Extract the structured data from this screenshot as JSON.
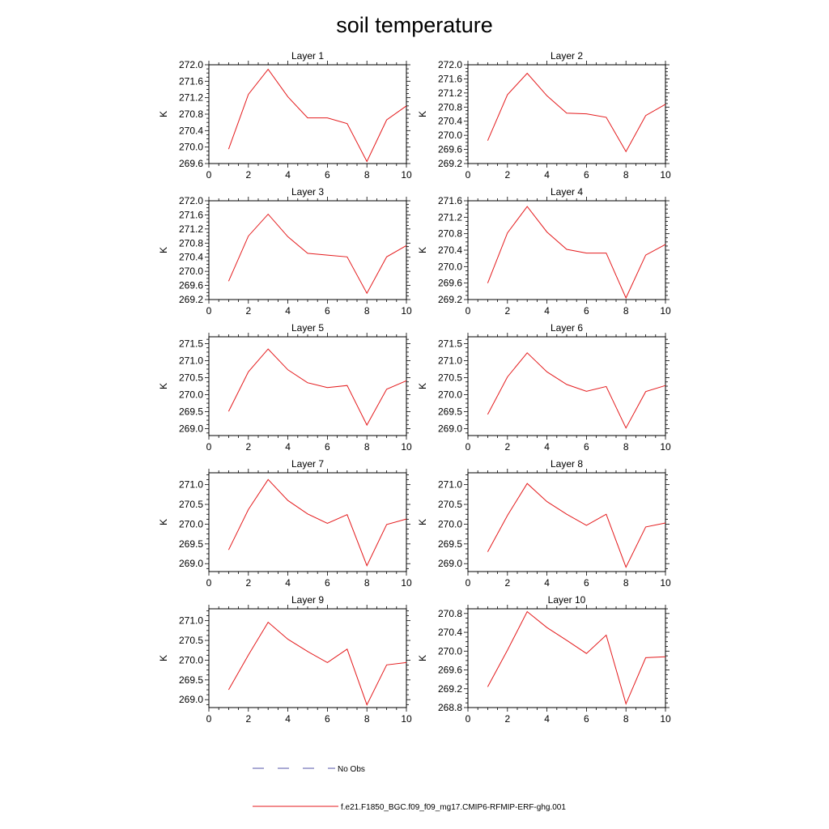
{
  "title": "soil temperature",
  "series_color": "#e41a1c",
  "obs_color": "#5555aa",
  "legend": {
    "obs_label": "No Obs",
    "model_label": "f.e21.F1850_BGC.f09_f09_mg17.CMIP6-RFMIP-ERF-ghg.001"
  },
  "chart_data": [
    {
      "type": "line",
      "title": "Layer 1",
      "ylabel": "K",
      "xlim": [
        0,
        10
      ],
      "xticks": [
        0,
        2,
        4,
        6,
        8,
        10
      ],
      "ylim": [
        269.6,
        272.0
      ],
      "yticks": [
        269.6,
        270.0,
        270.4,
        270.8,
        271.2,
        271.6,
        272.0
      ],
      "x": [
        1,
        2,
        3,
        4,
        5,
        6,
        7,
        8,
        9,
        10
      ],
      "values": [
        269.95,
        271.28,
        271.89,
        271.22,
        270.71,
        270.71,
        270.57,
        269.65,
        270.66,
        271.0
      ]
    },
    {
      "type": "line",
      "title": "Layer 2",
      "ylabel": "K",
      "xlim": [
        0,
        10
      ],
      "xticks": [
        0,
        2,
        4,
        6,
        8,
        10
      ],
      "ylim": [
        269.2,
        272.0
      ],
      "yticks": [
        269.2,
        269.6,
        270.0,
        270.4,
        270.8,
        271.2,
        271.6,
        272.0
      ],
      "x": [
        1,
        2,
        3,
        4,
        5,
        6,
        7,
        8,
        9,
        10
      ],
      "values": [
        269.85,
        271.15,
        271.76,
        271.12,
        270.63,
        270.61,
        270.51,
        269.54,
        270.56,
        270.88
      ]
    },
    {
      "type": "line",
      "title": "Layer 3",
      "ylabel": "K",
      "xlim": [
        0,
        10
      ],
      "xticks": [
        0,
        2,
        4,
        6,
        8,
        10
      ],
      "ylim": [
        269.2,
        272.0
      ],
      "yticks": [
        269.2,
        269.6,
        270.0,
        270.4,
        270.8,
        271.2,
        271.6,
        272.0
      ],
      "x": [
        1,
        2,
        3,
        4,
        5,
        6,
        7,
        8,
        9,
        10
      ],
      "values": [
        269.72,
        271.0,
        271.62,
        270.98,
        270.51,
        270.46,
        270.41,
        269.38,
        270.41,
        270.73
      ]
    },
    {
      "type": "line",
      "title": "Layer 4",
      "ylabel": "K",
      "xlim": [
        0,
        10
      ],
      "xticks": [
        0,
        2,
        4,
        6,
        8,
        10
      ],
      "ylim": [
        269.2,
        271.6
      ],
      "yticks": [
        269.2,
        269.6,
        270.0,
        270.4,
        270.8,
        271.2,
        271.6
      ],
      "x": [
        1,
        2,
        3,
        4,
        5,
        6,
        7,
        8,
        9,
        10
      ],
      "values": [
        269.6,
        270.82,
        271.46,
        270.84,
        270.42,
        270.33,
        270.33,
        269.24,
        270.28,
        270.54
      ]
    },
    {
      "type": "line",
      "title": "Layer 5",
      "ylabel": "K",
      "xlim": [
        0,
        10
      ],
      "xticks": [
        0,
        2,
        4,
        6,
        8,
        10
      ],
      "ylim": [
        268.8,
        271.7
      ],
      "yticks": [
        269.0,
        269.5,
        270.0,
        270.5,
        271.0,
        271.5
      ],
      "x": [
        1,
        2,
        3,
        4,
        5,
        6,
        7,
        8,
        9,
        10
      ],
      "values": [
        269.51,
        270.67,
        271.34,
        270.73,
        270.35,
        270.21,
        270.27,
        269.11,
        270.16,
        270.41
      ]
    },
    {
      "type": "line",
      "title": "Layer 6",
      "ylabel": "K",
      "xlim": [
        0,
        10
      ],
      "xticks": [
        0,
        2,
        4,
        6,
        8,
        10
      ],
      "ylim": [
        268.8,
        271.7
      ],
      "yticks": [
        269.0,
        269.5,
        270.0,
        270.5,
        271.0,
        271.5
      ],
      "x": [
        1,
        2,
        3,
        4,
        5,
        6,
        7,
        8,
        9,
        10
      ],
      "values": [
        269.42,
        270.52,
        271.23,
        270.67,
        270.3,
        270.1,
        270.24,
        269.02,
        270.09,
        270.27
      ]
    },
    {
      "type": "line",
      "title": "Layer 7",
      "ylabel": "K",
      "xlim": [
        0,
        10
      ],
      "xticks": [
        0,
        2,
        4,
        6,
        8,
        10
      ],
      "ylim": [
        268.8,
        271.3
      ],
      "yticks": [
        269.0,
        269.5,
        270.0,
        270.5,
        271.0
      ],
      "x": [
        1,
        2,
        3,
        4,
        5,
        6,
        7,
        8,
        9,
        10
      ],
      "values": [
        269.35,
        270.37,
        271.13,
        270.6,
        270.26,
        270.02,
        270.24,
        268.95,
        269.99,
        270.13
      ]
    },
    {
      "type": "line",
      "title": "Layer 8",
      "ylabel": "K",
      "xlim": [
        0,
        10
      ],
      "xticks": [
        0,
        2,
        4,
        6,
        8,
        10
      ],
      "ylim": [
        268.8,
        271.3
      ],
      "yticks": [
        269.0,
        269.5,
        270.0,
        270.5,
        271.0
      ],
      "x": [
        1,
        2,
        3,
        4,
        5,
        6,
        7,
        8,
        9,
        10
      ],
      "values": [
        269.3,
        270.22,
        271.03,
        270.57,
        270.25,
        269.97,
        270.25,
        268.91,
        269.93,
        270.03
      ]
    },
    {
      "type": "line",
      "title": "Layer 9",
      "ylabel": "K",
      "xlim": [
        0,
        10
      ],
      "xticks": [
        0,
        2,
        4,
        6,
        8,
        10
      ],
      "ylim": [
        268.8,
        271.3
      ],
      "yticks": [
        269.0,
        269.5,
        270.0,
        270.5,
        271.0
      ],
      "x": [
        1,
        2,
        3,
        4,
        5,
        6,
        7,
        8,
        9,
        10
      ],
      "values": [
        269.25,
        270.13,
        270.96,
        270.53,
        270.22,
        269.94,
        270.28,
        268.87,
        269.88,
        269.94
      ]
    },
    {
      "type": "line",
      "title": "Layer 10",
      "ylabel": "K",
      "xlim": [
        0,
        10
      ],
      "xticks": [
        0,
        2,
        4,
        6,
        8,
        10
      ],
      "ylim": [
        268.8,
        270.9
      ],
      "yticks": [
        268.8,
        269.2,
        269.6,
        270.0,
        270.4,
        270.8
      ],
      "x": [
        1,
        2,
        3,
        4,
        5,
        6,
        7,
        8,
        9,
        10
      ],
      "values": [
        269.24,
        270.02,
        270.84,
        270.5,
        270.23,
        269.95,
        270.34,
        268.88,
        269.86,
        269.88
      ]
    }
  ]
}
